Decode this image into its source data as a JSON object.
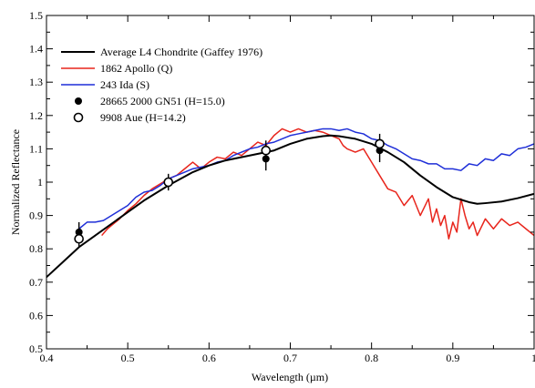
{
  "chart_data": {
    "type": "line",
    "xlabel": "Wavelength (µm)",
    "ylabel": "Normalized Reflectance",
    "xlim": [
      0.4,
      1.0
    ],
    "ylim": [
      0.5,
      1.5
    ],
    "x_ticks": [
      "0.4",
      "0.5",
      "0.6",
      "0.7",
      "0.8",
      "0.9",
      "1"
    ],
    "y_ticks": [
      "0.5",
      "0.6",
      "0.7",
      "0.8",
      "0.9",
      "1",
      "1.1",
      "1.2",
      "1.3",
      "1.4",
      "1.5"
    ],
    "x_tick_values": [
      0.4,
      0.5,
      0.6,
      0.7,
      0.8,
      0.9,
      1.0
    ],
    "y_tick_values": [
      0.5,
      0.6,
      0.7,
      0.8,
      0.9,
      1.0,
      1.1,
      1.2,
      1.3,
      1.4,
      1.5
    ],
    "grid": false,
    "legend_position": "top-left",
    "series": [
      {
        "name": "Average L4 Chondrite (Gaffey 1976)",
        "kind": "line",
        "color": "#000000",
        "x": [
          0.4,
          0.42,
          0.44,
          0.46,
          0.48,
          0.5,
          0.52,
          0.55,
          0.58,
          0.6,
          0.62,
          0.65,
          0.68,
          0.7,
          0.72,
          0.74,
          0.75,
          0.76,
          0.78,
          0.8,
          0.82,
          0.84,
          0.86,
          0.88,
          0.9,
          0.92,
          0.93,
          0.94,
          0.96,
          0.98,
          1.0
        ],
        "y": [
          0.715,
          0.76,
          0.805,
          0.84,
          0.875,
          0.91,
          0.945,
          0.99,
          1.03,
          1.05,
          1.065,
          1.08,
          1.095,
          1.115,
          1.13,
          1.138,
          1.14,
          1.138,
          1.13,
          1.115,
          1.09,
          1.06,
          1.02,
          0.985,
          0.955,
          0.94,
          0.935,
          0.937,
          0.942,
          0.952,
          0.965
        ]
      },
      {
        "name": "1862 Apollo (Q)",
        "kind": "line",
        "color": "#e8251c",
        "x": [
          0.468,
          0.475,
          0.48,
          0.49,
          0.5,
          0.51,
          0.52,
          0.53,
          0.54,
          0.55,
          0.56,
          0.57,
          0.58,
          0.59,
          0.6,
          0.61,
          0.62,
          0.63,
          0.64,
          0.65,
          0.66,
          0.67,
          0.68,
          0.685,
          0.69,
          0.7,
          0.71,
          0.72,
          0.73,
          0.74,
          0.75,
          0.76,
          0.765,
          0.77,
          0.78,
          0.79,
          0.8,
          0.81,
          0.82,
          0.83,
          0.84,
          0.85,
          0.86,
          0.87,
          0.875,
          0.88,
          0.885,
          0.89,
          0.895,
          0.9,
          0.905,
          0.91,
          0.915,
          0.92,
          0.925,
          0.93,
          0.94,
          0.95,
          0.96,
          0.97,
          0.98,
          0.99,
          1.0
        ],
        "y": [
          0.84,
          0.86,
          0.87,
          0.89,
          0.915,
          0.935,
          0.96,
          0.98,
          0.995,
          1.01,
          1.02,
          1.04,
          1.06,
          1.04,
          1.06,
          1.075,
          1.07,
          1.09,
          1.08,
          1.1,
          1.12,
          1.11,
          1.14,
          1.15,
          1.16,
          1.15,
          1.16,
          1.15,
          1.155,
          1.15,
          1.14,
          1.13,
          1.11,
          1.1,
          1.09,
          1.1,
          1.06,
          1.02,
          0.98,
          0.97,
          0.93,
          0.96,
          0.9,
          0.95,
          0.88,
          0.92,
          0.87,
          0.9,
          0.83,
          0.88,
          0.85,
          0.95,
          0.9,
          0.86,
          0.88,
          0.84,
          0.89,
          0.86,
          0.89,
          0.87,
          0.88,
          0.86,
          0.84
        ]
      },
      {
        "name": "243 Ida (S)",
        "kind": "line",
        "color": "#1f2fd8",
        "x": [
          0.44,
          0.45,
          0.46,
          0.47,
          0.48,
          0.49,
          0.5,
          0.51,
          0.52,
          0.53,
          0.54,
          0.55,
          0.56,
          0.57,
          0.58,
          0.59,
          0.6,
          0.61,
          0.62,
          0.63,
          0.64,
          0.65,
          0.66,
          0.67,
          0.68,
          0.69,
          0.7,
          0.71,
          0.72,
          0.73,
          0.74,
          0.75,
          0.76,
          0.77,
          0.78,
          0.79,
          0.8,
          0.81,
          0.82,
          0.83,
          0.84,
          0.85,
          0.86,
          0.87,
          0.88,
          0.89,
          0.9,
          0.91,
          0.92,
          0.93,
          0.94,
          0.95,
          0.96,
          0.97,
          0.98,
          0.99,
          1.0
        ],
        "y": [
          0.86,
          0.88,
          0.88,
          0.885,
          0.9,
          0.915,
          0.93,
          0.955,
          0.97,
          0.975,
          0.99,
          1.01,
          1.02,
          1.03,
          1.04,
          1.045,
          1.05,
          1.06,
          1.065,
          1.08,
          1.09,
          1.1,
          1.105,
          1.115,
          1.12,
          1.13,
          1.14,
          1.145,
          1.15,
          1.155,
          1.16,
          1.16,
          1.155,
          1.16,
          1.15,
          1.145,
          1.13,
          1.125,
          1.11,
          1.1,
          1.085,
          1.07,
          1.065,
          1.055,
          1.055,
          1.04,
          1.04,
          1.035,
          1.055,
          1.05,
          1.07,
          1.065,
          1.085,
          1.08,
          1.1,
          1.105,
          1.115
        ]
      },
      {
        "name": "28665 2000 GN51 (H=15.0)",
        "kind": "points",
        "marker": "filled-circle",
        "color": "#000000",
        "x": [
          0.44,
          0.55,
          0.67,
          0.81
        ],
        "y": [
          0.85,
          1.0,
          1.07,
          1.095
        ],
        "err": [
          0.03,
          0.02,
          0.035,
          0.035
        ]
      },
      {
        "name": "9908 Aue (H=14.2)",
        "kind": "points",
        "marker": "open-circle",
        "color": "#000000",
        "x": [
          0.44,
          0.55,
          0.67,
          0.81
        ],
        "y": [
          0.83,
          1.0,
          1.095,
          1.115
        ],
        "err": [
          0.025,
          0.025,
          0.03,
          0.03
        ]
      }
    ]
  }
}
